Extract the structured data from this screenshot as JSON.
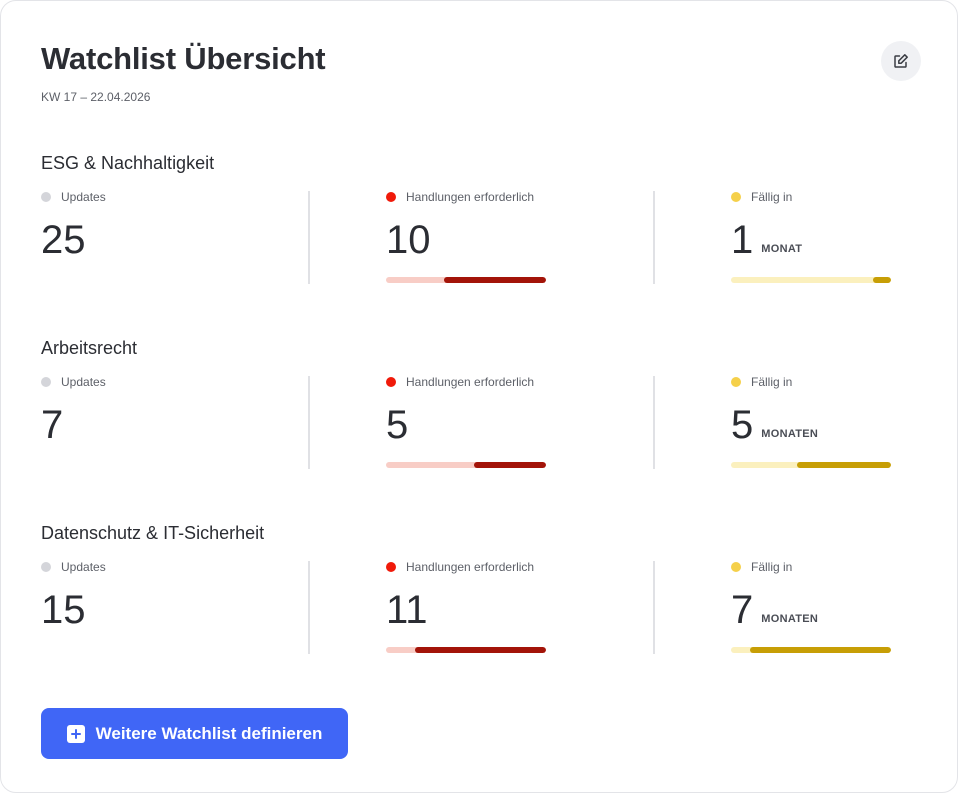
{
  "header": {
    "title": "Watchlist Übersicht",
    "subtitle": "KW 17 – 22.04.2026",
    "edit_icon": "edit-icon"
  },
  "colors": {
    "updates_dot": "#d4d5da",
    "actions_dot": "#f01a0a",
    "actions_track": "#f8cdc6",
    "actions_fill": "#a31409",
    "due_dot": "#f5d04a",
    "due_track": "#fbf0be",
    "due_fill": "#c79e05",
    "button": "#4066f6"
  },
  "sections": [
    {
      "title": "ESG & Nachhaltigkeit",
      "updates": {
        "label": "Updates",
        "value": "25"
      },
      "actions": {
        "label": "Handlungen erforderlich",
        "value": "10",
        "progress": 0.64
      },
      "due": {
        "label": "Fällig in",
        "value": "1",
        "unit": "MONAT",
        "progress": 0.11
      }
    },
    {
      "title": "Arbeitsrecht",
      "updates": {
        "label": "Updates",
        "value": "7"
      },
      "actions": {
        "label": "Handlungen erforderlich",
        "value": "5",
        "progress": 0.45
      },
      "due": {
        "label": "Fällig in",
        "value": "5",
        "unit": "MONATEN",
        "progress": 0.59
      }
    },
    {
      "title": "Datenschutz & IT-Sicherheit",
      "updates": {
        "label": "Updates",
        "value": "15"
      },
      "actions": {
        "label": "Handlungen erforderlich",
        "value": "11",
        "progress": 0.82
      },
      "due": {
        "label": "Fällig in",
        "value": "7",
        "unit": "MONATEN",
        "progress": 0.88
      }
    }
  ],
  "add_button": {
    "label": "Weitere Watchlist definieren",
    "icon": "plus-square-icon"
  }
}
